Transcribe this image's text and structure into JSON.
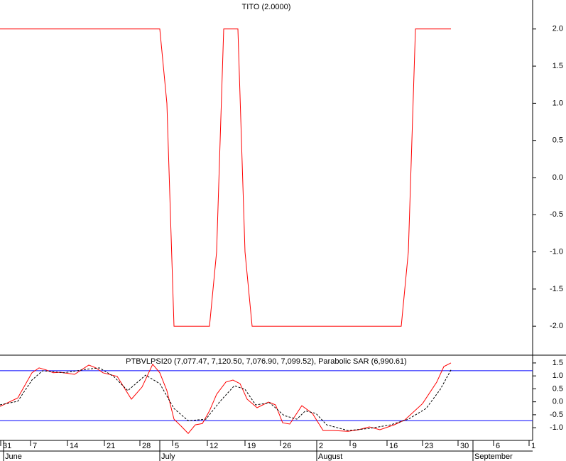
{
  "chart_data": [
    {
      "type": "line",
      "title": "TITO (2.0000)",
      "xlim": [
        0,
        75
      ],
      "ylim": [
        -2.39,
        2.39
      ],
      "yticks": [
        {
          "value": 2,
          "label": "2.0"
        },
        1.5,
        {
          "value": 1,
          "label": "1.0"
        },
        0.5,
        {
          "value": 0,
          "label": "0.0"
        },
        -0.5,
        {
          "value": -1,
          "label": "-1.0"
        },
        -1.5,
        {
          "value": -2,
          "label": "-2.0"
        }
      ],
      "series": [
        {
          "color": "#ff0000",
          "dash": false,
          "x": [
            0,
            22.5,
            23.5,
            24.5,
            29.5,
            30.5,
            31.5,
            33.5,
            34.5,
            35.5,
            56.5,
            57.5,
            58.5,
            63.5
          ],
          "values": [
            2,
            2,
            1,
            -2,
            -2,
            -1,
            2,
            2,
            -1,
            -2,
            -2,
            -1,
            2,
            2
          ]
        }
      ]
    },
    {
      "type": "line",
      "title": "PTBVLPSI20 (7,077.47, 7,120.50, 7,076.90, 7,099.52), Parabolic SAR (6,990.61)",
      "xlim": [
        0,
        75
      ],
      "ylim": [
        -1.49,
        1.8
      ],
      "yticks": [
        1.5,
        {
          "value": 1,
          "label": "1.0"
        },
        0.5,
        {
          "value": 0,
          "label": "0.0"
        },
        -0.5,
        {
          "value": -1,
          "label": "-1.0"
        }
      ],
      "hlines": [
        1.2,
        -0.73
      ],
      "hline_color": "#0000ff",
      "xticks": [
        {
          "value": 0.1,
          "label": "31"
        },
        {
          "value": 4.3,
          "label": "7"
        },
        {
          "value": 9.5,
          "label": "14"
        },
        {
          "value": 14.7,
          "label": "21"
        },
        {
          "value": 19.7,
          "label": "28"
        },
        {
          "value": 24.3,
          "label": "5"
        },
        {
          "value": 29.2,
          "label": "12"
        },
        {
          "value": 34.5,
          "label": "19"
        },
        {
          "value": 39.5,
          "label": "26"
        },
        {
          "value": 44.6,
          "label": "2"
        },
        {
          "value": 49.3,
          "label": "9"
        },
        {
          "value": 54.5,
          "label": "16"
        },
        {
          "value": 59.5,
          "label": "23"
        },
        {
          "value": 64.5,
          "label": "30"
        },
        {
          "value": 69.5,
          "label": "6"
        },
        {
          "value": 74.5,
          "label": "1"
        }
      ],
      "month_ticks": [
        {
          "value": 0.5,
          "label": "June"
        },
        {
          "value": 22.5,
          "label": "July"
        },
        {
          "value": 44.6,
          "label": "August"
        },
        {
          "value": 66.6,
          "label": "September"
        }
      ],
      "series": [
        {
          "color": "#ff0000",
          "dash": false,
          "x": [
            0,
            2.5,
            4.5,
            5.5,
            6.5,
            7.5,
            8.5,
            10.5,
            12.5,
            13.5,
            14.5,
            16.5,
            18.5,
            20,
            21.5,
            22.5,
            23.5,
            24.5,
            25.5,
            26.5,
            27.5,
            28.5,
            29.5,
            30.5,
            31.8,
            32.8,
            33.8,
            34.8,
            36.2,
            37.8,
            38.8,
            39.8,
            40.8,
            42.5,
            44,
            45.5,
            47,
            49,
            50.5,
            52,
            53.5,
            55.5,
            57,
            59.5,
            61.5,
            62.5,
            63.5
          ],
          "values": [
            -0.18,
            0.15,
            1.12,
            1.31,
            1.23,
            1.12,
            1.14,
            1.06,
            1.42,
            1.31,
            1.12,
            0.98,
            0.1,
            0.57,
            1.45,
            1.12,
            0.43,
            -0.67,
            -0.94,
            -1.22,
            -0.89,
            -0.84,
            -0.35,
            0.29,
            0.76,
            0.84,
            0.7,
            0.1,
            -0.23,
            -0.01,
            -0.12,
            -0.81,
            -0.86,
            -0.15,
            -0.45,
            -1.11,
            -1.11,
            -1.14,
            -1.08,
            -0.97,
            -1.08,
            -0.89,
            -0.7,
            -0.07,
            0.76,
            1.36,
            1.5
          ]
        },
        {
          "color": "#000000",
          "dash": true,
          "x": [
            0,
            2.5,
            4.5,
            6,
            9,
            12,
            14,
            16,
            18,
            20.5,
            22.5,
            24.5,
            26.5,
            29,
            31,
            33,
            34.5,
            36,
            38,
            40,
            41.8,
            43,
            44.5,
            46,
            49,
            52,
            55,
            57.5,
            60,
            62,
            63.5
          ],
          "values": [
            -0.12,
            0.02,
            0.84,
            1.2,
            1.12,
            1.25,
            1.31,
            0.98,
            0.43,
            1.03,
            0.7,
            -0.26,
            -0.73,
            -0.67,
            0.02,
            0.62,
            0.48,
            -0.12,
            -0.04,
            -0.53,
            -0.67,
            -0.35,
            -0.45,
            -0.89,
            -1.11,
            -1.03,
            -0.89,
            -0.67,
            -0.26,
            0.48,
            1.23
          ]
        }
      ]
    }
  ]
}
